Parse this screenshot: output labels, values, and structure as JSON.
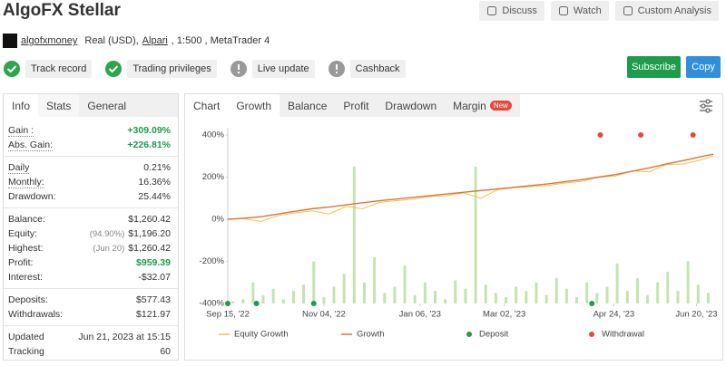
{
  "header": {
    "title": "AlgoFX Stellar",
    "buttons": [
      "Discuss",
      "Watch",
      "Custom Analysis"
    ],
    "user": "algofxmoney",
    "account": "Real (USD),",
    "broker": "Alpari",
    "account_rest": ", 1:500 , MetaTrader 4"
  },
  "badges": [
    {
      "label": "Track record",
      "status": "ok"
    },
    {
      "label": "Trading privileges",
      "status": "ok"
    },
    {
      "label": "Live update",
      "status": "warn"
    },
    {
      "label": "Cashback",
      "status": "warn"
    }
  ],
  "actions": [
    "Subscribe",
    "Copy"
  ],
  "stats_tabs": [
    "Info",
    "Stats",
    "General"
  ],
  "stats": [
    [
      {
        "label": "Gain :",
        "value": "+309.09%",
        "green": true,
        "dotted": true
      },
      {
        "label": "Abs. Gain:",
        "value": "+226.81%",
        "green": true,
        "dotted": true
      }
    ],
    [
      {
        "label": "Daily",
        "value": "0.21%",
        "dotted": true
      },
      {
        "label": "Monthly:",
        "value": "16.36%",
        "dotted": true
      },
      {
        "label": "Drawdown:",
        "value": "25.44%"
      }
    ],
    [
      {
        "label": "Balance:",
        "value": "$1,260.42"
      },
      {
        "label": "Equity:",
        "note": "(94.90%)",
        "value": "$1,196.20"
      },
      {
        "label": "Highest:",
        "note": "(Jun 20)",
        "value": "$1,260.42"
      },
      {
        "label": "Profit:",
        "value": "$959.39",
        "green": true
      },
      {
        "label": "Interest:",
        "value": "-$32.07"
      }
    ],
    [
      {
        "label": "Deposits:",
        "value": "$577.43"
      },
      {
        "label": "Withdrawals:",
        "value": "$121.97"
      }
    ],
    [
      {
        "label": "Updated",
        "value": "Jun 21, 2023 at 15:15"
      },
      {
        "label": "Tracking",
        "value": "60"
      }
    ]
  ],
  "chart_tabs": [
    "Chart",
    "Growth",
    "Balance",
    "Profit",
    "Drawdown",
    "Margin"
  ],
  "active_tab": "Growth",
  "new_badge": "New",
  "chart_data": {
    "type": "line",
    "xlim": [
      0,
      288
    ],
    "xticks": [
      {
        "value": 0,
        "label": "Sep 15, '22"
      },
      {
        "value": 57,
        "label": "Nov 04, '22"
      },
      {
        "value": 114,
        "label": "Jan 06, '23"
      },
      {
        "value": 164,
        "label": "Mar 02, '23"
      },
      {
        "value": 229,
        "label": "Apr 24, '23"
      },
      {
        "value": 278,
        "label": "Jun 20, '23"
      }
    ],
    "ylim": [
      -400,
      400
    ],
    "yticks": [
      {
        "value": 400,
        "label": "400%"
      },
      {
        "value": 200,
        "label": "200%"
      },
      {
        "value": 0,
        "label": "0%"
      },
      {
        "value": -200,
        "label": "-200%"
      },
      {
        "value": -400,
        "label": "-400%"
      }
    ],
    "grid": false,
    "x": [
      0,
      10,
      20,
      30,
      40,
      50,
      60,
      70,
      80,
      90,
      100,
      110,
      120,
      130,
      140,
      150,
      160,
      170,
      180,
      190,
      200,
      210,
      220,
      230,
      240,
      250,
      260,
      270,
      280,
      288
    ],
    "series": [
      {
        "name": "Equity Growth",
        "color": "#f2c14e",
        "values": [
          0,
          2,
          -10,
          18,
          30,
          40,
          25,
          60,
          50,
          80,
          88,
          95,
          108,
          112,
          125,
          100,
          140,
          150,
          155,
          160,
          172,
          180,
          200,
          205,
          230,
          225,
          260,
          262,
          280,
          300
        ]
      },
      {
        "name": "Growth",
        "color": "#e0743a",
        "values": [
          0,
          5,
          12,
          25,
          38,
          50,
          58,
          68,
          78,
          88,
          96,
          104,
          112,
          120,
          128,
          136,
          144,
          152,
          160,
          168,
          178,
          188,
          200,
          212,
          228,
          244,
          262,
          278,
          296,
          309
        ]
      }
    ],
    "bars": {
      "color": "#c3e4b0",
      "x": [
        3,
        9,
        15,
        21,
        27,
        33,
        39,
        45,
        51,
        57,
        63,
        69,
        75,
        81,
        87,
        93,
        99,
        105,
        111,
        117,
        123,
        129,
        135,
        141,
        147,
        153,
        159,
        165,
        171,
        177,
        183,
        189,
        195,
        201,
        207,
        213,
        219,
        225,
        231,
        237,
        243,
        249,
        255,
        261,
        267,
        273,
        279,
        285
      ],
      "values": [
        -390,
        -380,
        -300,
        -360,
        -330,
        -380,
        -340,
        -310,
        -200,
        -370,
        -320,
        -260,
        250,
        -300,
        -180,
        -350,
        -320,
        -220,
        -360,
        -300,
        -340,
        -380,
        -290,
        -330,
        250,
        -310,
        -350,
        -370,
        -320,
        -340,
        -300,
        -360,
        -280,
        -330,
        -370,
        -300,
        -350,
        -320,
        -210,
        -340,
        -280,
        -360,
        -300,
        -250,
        -340,
        -200,
        -310,
        -350
      ]
    },
    "markers": [
      {
        "name": "Deposit",
        "color": "#1e9b4b",
        "x": [
          0,
          17,
          51,
          216
        ],
        "values": [
          -400,
          -400,
          -400,
          -400
        ]
      },
      {
        "name": "Withdrawal",
        "color": "#e8483b",
        "x": [
          221,
          245,
          276
        ],
        "values": [
          400,
          400,
          400
        ]
      }
    ]
  }
}
